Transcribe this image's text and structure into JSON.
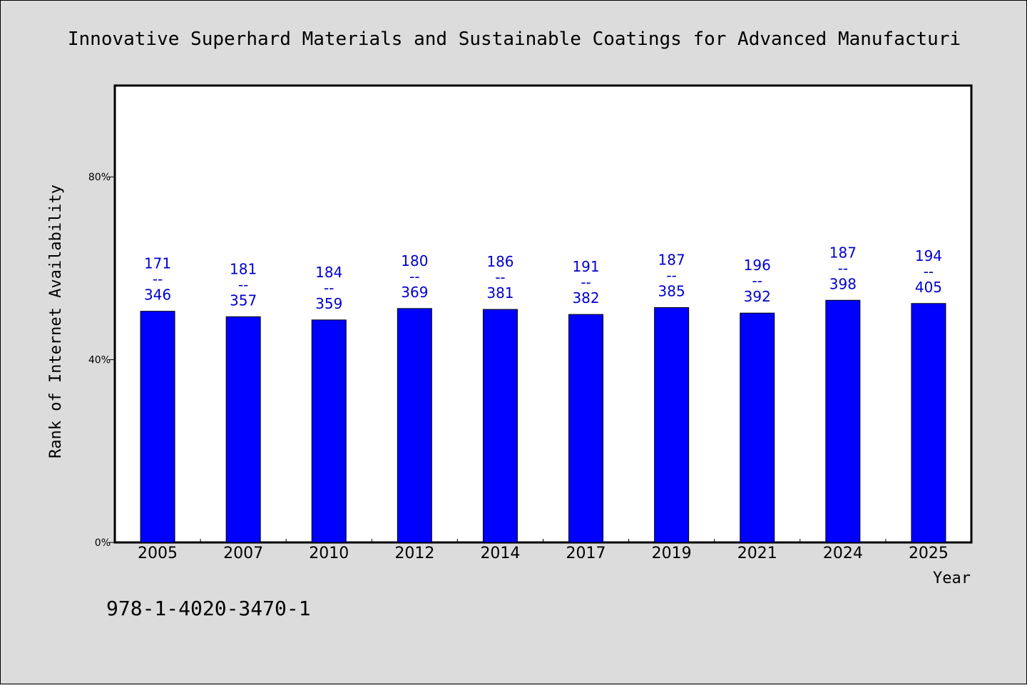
{
  "chart_data": {
    "type": "bar",
    "title": "Innovative Superhard Materials and Sustainable Coatings for Advanced Manufacturi",
    "xlabel": "Year",
    "ylabel": "Rank of Internet Availability",
    "categories": [
      "2005",
      "2007",
      "2010",
      "2012",
      "2014",
      "2017",
      "2019",
      "2021",
      "2024",
      "2025"
    ],
    "values": [
      50.6,
      49.4,
      48.7,
      51.2,
      51.0,
      49.9,
      51.4,
      50.2,
      53.0,
      52.3
    ],
    "data_labels": [
      [
        "171",
        "--",
        "346"
      ],
      [
        "181",
        "--",
        "357"
      ],
      [
        "184",
        "--",
        "359"
      ],
      [
        "180",
        "--",
        "369"
      ],
      [
        "186",
        "--",
        "381"
      ],
      [
        "191",
        "--",
        "382"
      ],
      [
        "187",
        "--",
        "385"
      ],
      [
        "196",
        "--",
        "392"
      ],
      [
        "187",
        "--",
        "398"
      ],
      [
        "194",
        "--",
        "405"
      ]
    ],
    "ylim": [
      0,
      100
    ],
    "yticks": [
      {
        "value": 0,
        "label": "0%"
      },
      {
        "value": 40,
        "label": "40%"
      },
      {
        "value": 80,
        "label": "80%"
      }
    ],
    "grid": false,
    "bar_color": "#0000ff",
    "label_color": "#0000cc"
  },
  "footer": {
    "isbn": "978-1-4020-3470-1"
  }
}
